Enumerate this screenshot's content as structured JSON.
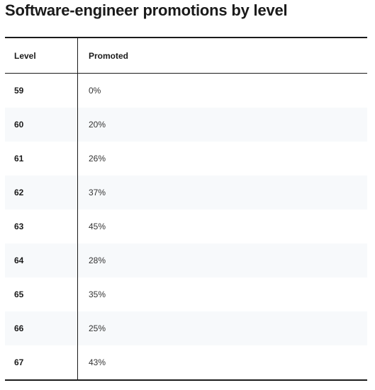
{
  "title": "Software-engineer promotions by level",
  "chart_data": {
    "type": "table",
    "title": "Software-engineer promotions by level",
    "columns": [
      "Level",
      "Promoted"
    ],
    "rows": [
      {
        "level": "59",
        "promoted": "0%"
      },
      {
        "level": "60",
        "promoted": "20%"
      },
      {
        "level": "61",
        "promoted": "26%"
      },
      {
        "level": "62",
        "promoted": "37%"
      },
      {
        "level": "63",
        "promoted": "45%"
      },
      {
        "level": "64",
        "promoted": "28%"
      },
      {
        "level": "65",
        "promoted": "35%"
      },
      {
        "level": "66",
        "promoted": "25%"
      },
      {
        "level": "67",
        "promoted": "43%"
      }
    ]
  }
}
